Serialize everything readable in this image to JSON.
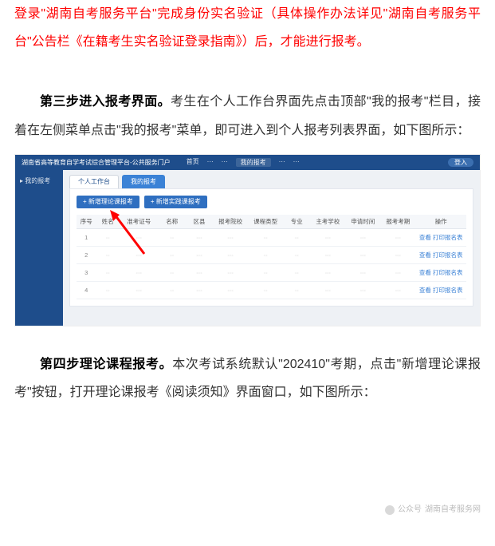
{
  "colors": {
    "red": "#ff0000",
    "primary_blue": "#1e4d8b",
    "button_blue": "#2f6fc0",
    "tab_active": "#3b82d6",
    "panel_bg": "#eef1f5",
    "link": "#3b82d6"
  },
  "para_top": "登录\"湖南自考服务平台\"完成身份实名验证（具体操作办法详见\"湖南自考服务平台\"公告栏《在籍考生实名验证登录指南》）后，才能进行报考。",
  "step3": {
    "title": "第三步进入报考界面。",
    "body": "考生在个人工作台界面先点击顶部\"我的报考\"栏目，接着在左侧菜单点击\"我的报考\"菜单，即可进入到个人报考列表界面，如下图所示："
  },
  "step4": {
    "title": "第四步理论课程报考。",
    "body": "本次考试系统默认\"202410\"考期，点击\"新增理论课报考\"按钮，打开理论课报考《阅读须知》界面窗口，如下图所示："
  },
  "shot": {
    "platform_title": "湖南省高等教育自学考试综合管理平台-公共服务门户",
    "nav": [
      "首页",
      "···",
      "···",
      "我的报考",
      "···",
      "···"
    ],
    "user_pill": "登入",
    "sidebar_item": "我的报考",
    "tabs": {
      "inactive": "个人工作台",
      "active": "我的报考"
    },
    "buttons": {
      "b1": "+ 新增理论课报考",
      "b2": "+ 新增实践课报考"
    },
    "columns": [
      "序号",
      "姓名",
      "准考证号",
      "名称",
      "区县",
      "报考院校",
      "课程类型",
      "专业",
      "主考学校",
      "申请时间",
      "报考考期",
      "操作"
    ],
    "rows": [
      [
        "1",
        "··",
        "···",
        "··",
        "···",
        "···",
        "··",
        "··",
        "···",
        "···",
        "···"
      ],
      [
        "2",
        "··",
        "···",
        "··",
        "···",
        "···",
        "··",
        "··",
        "···",
        "···",
        "···"
      ],
      [
        "3",
        "··",
        "···",
        "··",
        "···",
        "···",
        "··",
        "··",
        "···",
        "···",
        "···"
      ],
      [
        "4",
        "··",
        "···",
        "··",
        "···",
        "···",
        "··",
        "··",
        "···",
        "···",
        "···"
      ]
    ],
    "ops": {
      "view": "查看",
      "print": "打印报名表"
    }
  },
  "watermark": {
    "label1": "公众号",
    "label2": "湖南自考服务网"
  }
}
